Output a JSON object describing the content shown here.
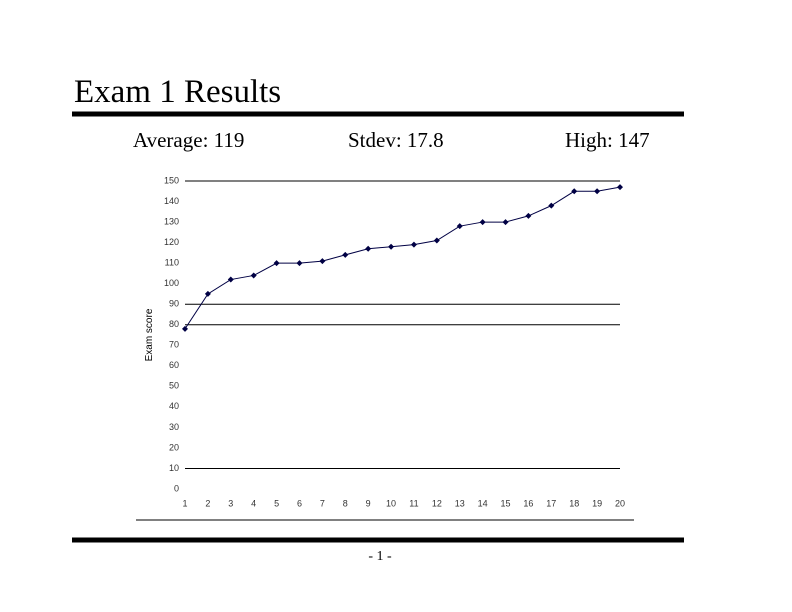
{
  "header": {
    "title": "Exam 1 Results"
  },
  "stats": [
    "Average: 119",
    "Stdev: 17.8",
    "High: 147"
  ],
  "chart_data": {
    "type": "line",
    "y_label": "Exam score",
    "x": [
      1,
      2,
      3,
      4,
      5,
      6,
      7,
      8,
      9,
      10,
      11,
      12,
      13,
      14,
      15,
      16,
      17,
      18,
      19,
      20
    ],
    "values": [
      78,
      95,
      102,
      104,
      110,
      110,
      111,
      114,
      117,
      118,
      119,
      121,
      128,
      130,
      130,
      133,
      138,
      145,
      145,
      147
    ],
    "color": "#000044",
    "xlim": [
      1,
      20
    ],
    "xticks": [
      1,
      2,
      3,
      4,
      5,
      6,
      7,
      8,
      9,
      10,
      11,
      12,
      13,
      14,
      15,
      16,
      17,
      18,
      19,
      20
    ],
    "ylim": [
      0,
      150
    ],
    "yticks": [
      0,
      10,
      20,
      30,
      40,
      50,
      60,
      70,
      80,
      90,
      100,
      110,
      120,
      130,
      140,
      150
    ],
    "reference_lines": [
      150,
      90,
      80,
      10
    ]
  },
  "footer": {
    "page_number": "- 1 -"
  }
}
